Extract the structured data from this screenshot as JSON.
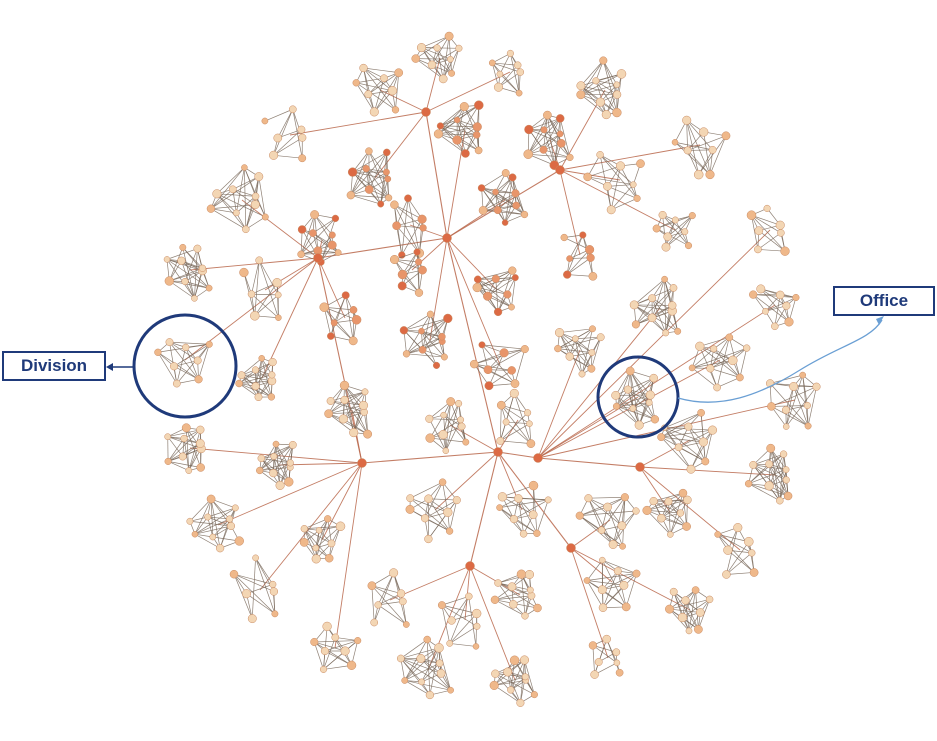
{
  "annotations": {
    "division_label": "Division",
    "office_label": "Office"
  },
  "colors": {
    "edge": "#7a6a5c",
    "edge_hub": "#b8664a",
    "node_light": "#f3d6b4",
    "node_mid": "#efb88a",
    "node_dark": "#e8956a",
    "node_hub": "#dc6a44",
    "annotation_blue": "#1f3a7a",
    "connector_light_blue": "#6a9fd4"
  }
}
